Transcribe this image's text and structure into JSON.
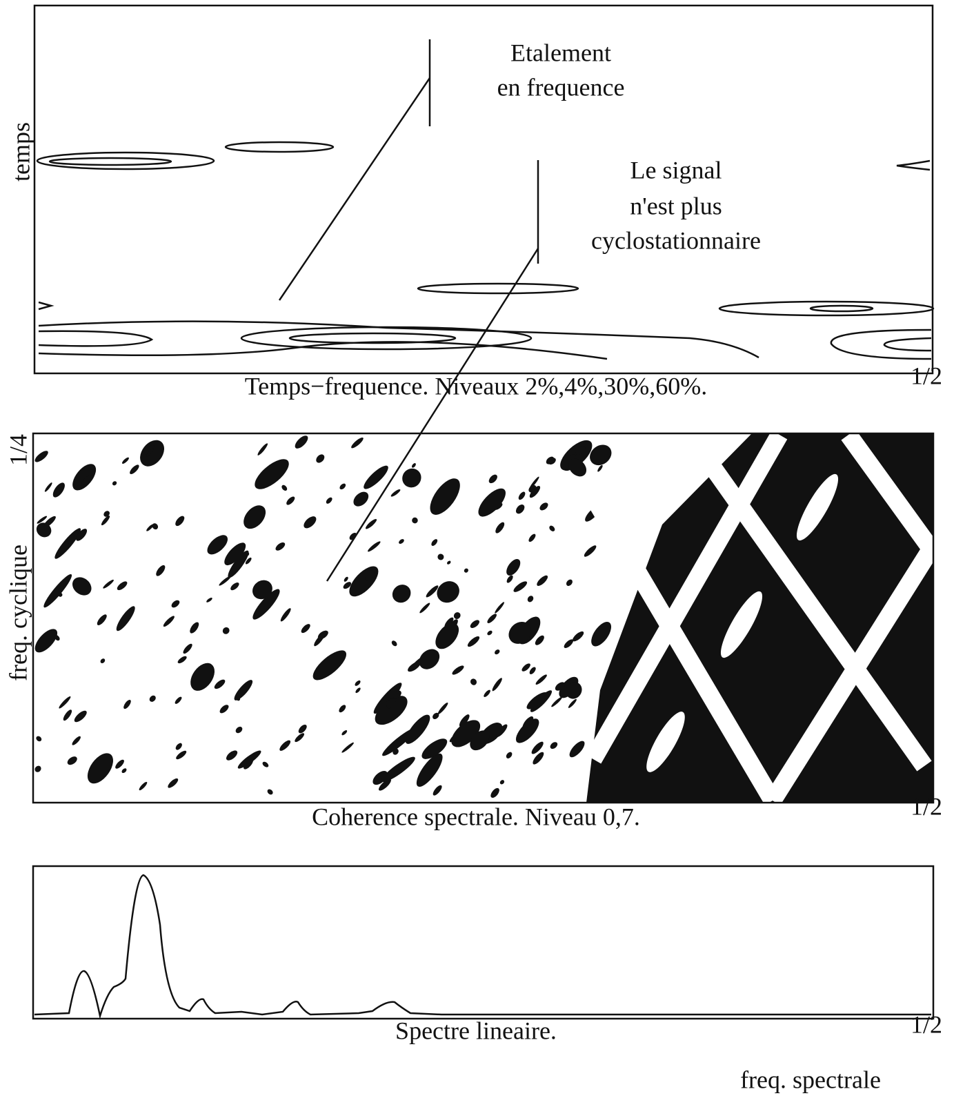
{
  "panels": [
    {
      "ylabel": "temps",
      "caption": "Temps−frequence. Niveaux 2%,4%,30%,60%.",
      "x_end": "1/2"
    },
    {
      "ylabel": "freq. cyclique",
      "y_end": "1/4",
      "caption": "Coherence spectrale. Niveau 0,7.",
      "x_end": "1/2"
    },
    {
      "caption": "Spectre lineaire.",
      "x_end": "1/2"
    }
  ],
  "annotations": [
    {
      "lines": [
        "Etalement",
        "en frequence"
      ]
    },
    {
      "lines": [
        "Le signal",
        "n'est plus",
        "cyclostationnaire"
      ]
    }
  ],
  "xlabel": "freq. spectrale"
}
